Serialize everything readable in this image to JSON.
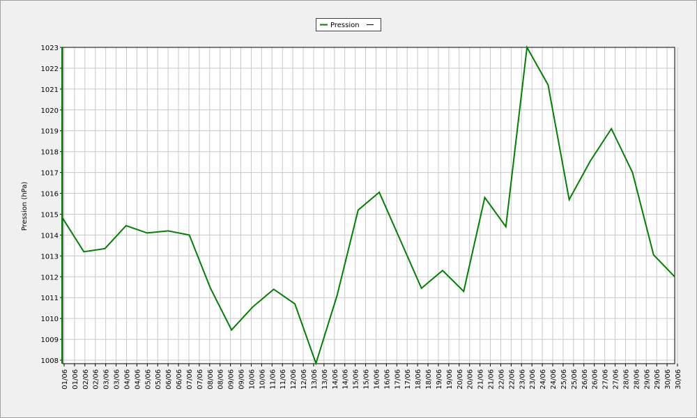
{
  "chart_data": {
    "type": "line",
    "y_label": "Pression (hPa)",
    "categories": [
      "01/06",
      "02/06",
      "03/06",
      "04/06",
      "05/06",
      "06/06",
      "07/06",
      "08/06",
      "09/06",
      "10/06",
      "11/06",
      "12/06",
      "13/06",
      "14/06",
      "15/06",
      "16/06",
      "17/06",
      "18/06",
      "19/06",
      "20/06",
      "21/06",
      "22/06",
      "23/06",
      "24/06",
      "25/06",
      "26/06",
      "27/06",
      "28/06",
      "29/06",
      "30/06"
    ],
    "xtick_labels": [
      "01/06",
      "01/06",
      "02/06",
      "02/06",
      "03/06",
      "03/06",
      "04/06",
      "04/06",
      "05/06",
      "05/06",
      "06/06",
      "06/06",
      "07/06",
      "07/06",
      "08/06",
      "08/06",
      "09/06",
      "09/06",
      "10/06",
      "10/06",
      "11/06",
      "11/06",
      "12/06",
      "12/06",
      "13/06",
      "13/06",
      "14/06",
      "14/06",
      "15/06",
      "15/06",
      "16/06",
      "16/06",
      "17/06",
      "17/06",
      "18/06",
      "18/06",
      "19/06",
      "19/06",
      "20/06",
      "20/06",
      "21/06",
      "21/06",
      "22/06",
      "22/06",
      "23/06",
      "23/06",
      "24/06",
      "24/06",
      "25/06",
      "25/06",
      "26/06",
      "26/06",
      "27/06",
      "27/06",
      "28/06",
      "28/06",
      "29/06",
      "29/06",
      "30/06",
      "30/06"
    ],
    "series": [
      {
        "name": "Pression",
        "color": "#008000",
        "values": [
          1014.8,
          1013.2,
          1013.35,
          1014.45,
          1014.1,
          1014.2,
          1014.0,
          1011.45,
          1009.45,
          1010.55,
          1011.4,
          1010.7,
          1007.85,
          1011.1,
          1015.2,
          1016.05,
          1013.75,
          1011.45,
          1012.3,
          1011.3,
          1015.8,
          1014.4,
          1023.0,
          1021.2,
          1015.7,
          1017.55,
          1019.1,
          1017.0,
          1013.05,
          1012.0
        ]
      }
    ],
    "ylim": [
      1008,
      1023
    ],
    "yticks": [
      1008,
      1009,
      1010,
      1011,
      1012,
      1013,
      1014,
      1015,
      1016,
      1017,
      1018,
      1019,
      1020,
      1021,
      1022,
      1023
    ],
    "grid": true
  }
}
